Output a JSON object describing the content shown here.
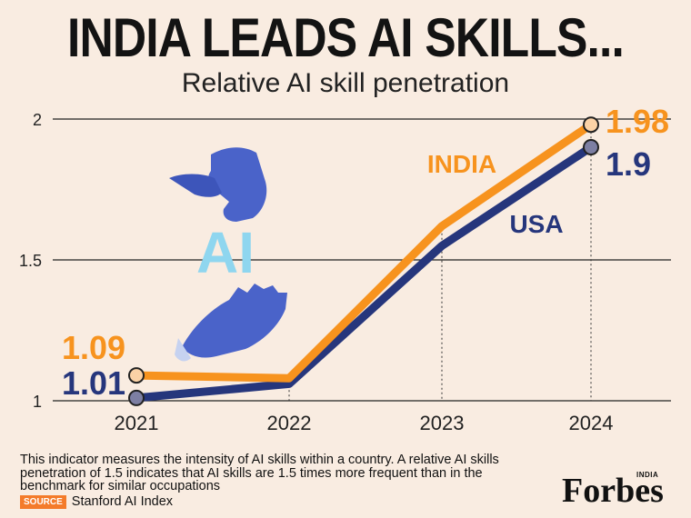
{
  "header": {
    "title": "INDIA LEADS AI SKILLS...",
    "subtitle": "Relative AI skill penetration"
  },
  "chart_data": {
    "type": "line",
    "title": "INDIA LEADS AI SKILLS...",
    "subtitle": "Relative AI skill penetration",
    "categories": [
      "2021",
      "2022",
      "2023",
      "2024"
    ],
    "ylim": [
      1,
      2
    ],
    "yticks": [
      "1",
      "1.5",
      "2"
    ],
    "series": [
      {
        "name": "INDIA",
        "color": "#f7931e",
        "values": [
          1.09,
          1.08,
          1.62,
          1.98
        ],
        "start_label": "1.09",
        "end_label": "1.98"
      },
      {
        "name": "USA",
        "color": "#26367c",
        "values": [
          1.01,
          1.06,
          1.55,
          1.9
        ],
        "start_label": "1.01",
        "end_label": "1.9"
      }
    ],
    "illustration_text": "AI"
  },
  "footer": {
    "note": "This indicator measures the intensity of AI skills within a country. A relative AI skills penetration of 1.5 indicates that AI skills are 1.5 times more frequent than in the benchmark for similar occupations",
    "source_tag": "SOURCE",
    "source": "Stanford AI Index",
    "brand": "Forbes",
    "brand_sub": "INDIA"
  },
  "colors": {
    "background": "#f9ece1",
    "india": "#f7931e",
    "usa": "#26367c",
    "illustration": "#4a63c9",
    "source_tag": "#f47b2a"
  }
}
